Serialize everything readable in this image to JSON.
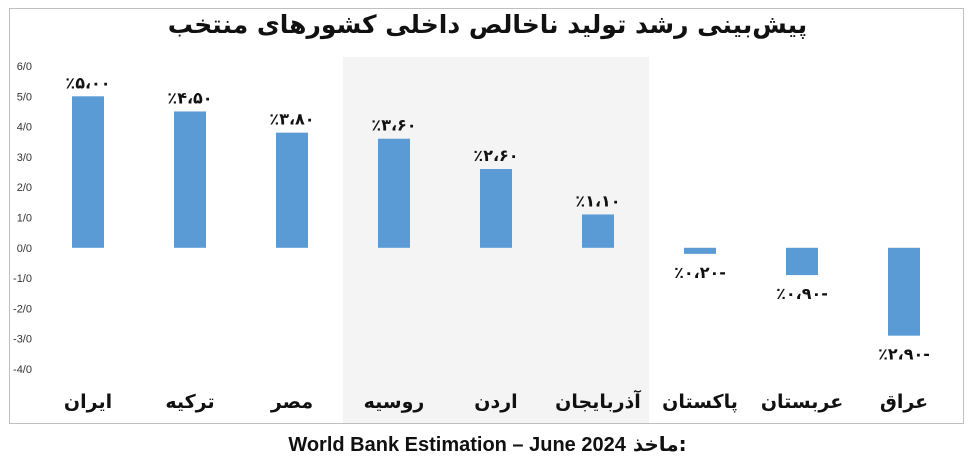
{
  "chart_data": {
    "type": "bar",
    "title": "پیش‌بینی رشد تولید ناخالص داخلی کشورهای منتخب",
    "categories": [
      "ایران",
      "ترکیه",
      "مصر",
      "روسیه",
      "اردن",
      "آذربایجان",
      "پاکستان",
      "عربستان",
      "عراق"
    ],
    "values": [
      5.0,
      4.5,
      3.8,
      3.6,
      2.6,
      1.1,
      -0.2,
      -0.9,
      -2.9
    ],
    "data_labels": [
      "٪۵،۰۰",
      "٪۴،۵۰",
      "٪۳،۸۰",
      "٪۳،۶۰",
      "٪۲،۶۰",
      "٪۱،۱۰",
      "٪۰،۲۰-",
      "٪۰،۹۰-",
      "٪۲،۹۰-"
    ],
    "y_tick_labels": [
      "6/0",
      "5/0",
      "4/0",
      "3/0",
      "2/0",
      "1/0",
      "0/0",
      "-1/0",
      "-2/0",
      "-3/0",
      "-4/0"
    ],
    "y_ticks": [
      6,
      5,
      4,
      3,
      2,
      1,
      0,
      -1,
      -2,
      -3,
      -4
    ],
    "ylim": [
      -4,
      6
    ],
    "xlabel": "",
    "ylabel": "",
    "grid": false,
    "bar_color": "#5b9bd5",
    "highlight_band": {
      "from_index": 3,
      "to_index": 5,
      "color": "#f4f4f4"
    }
  },
  "source": {
    "label": "ماخذ:",
    "text": "World Bank Estimation – June 2024"
  }
}
